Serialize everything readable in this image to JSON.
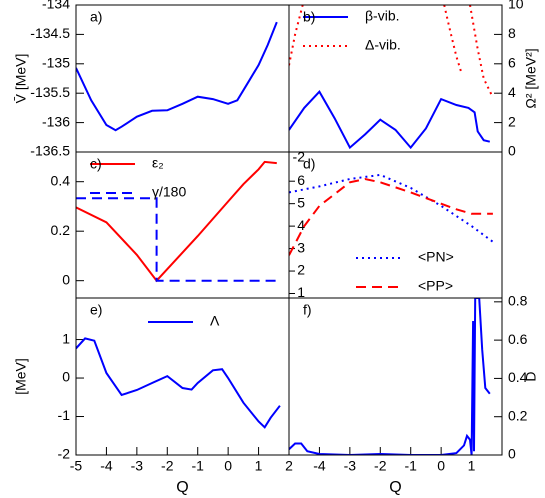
{
  "chart_data": [
    {
      "type": "line",
      "label": "a)",
      "y_label": "V̄ [MeV]",
      "axis_side": "left",
      "xlim": [
        -5,
        2
      ],
      "ylim": [
        -136.5,
        -134
      ],
      "yticks": [
        -136.5,
        -136,
        -135.5,
        -135,
        -134.5,
        -134
      ],
      "series": [
        {
          "color": "#0000ff",
          "style": "solid",
          "x": [
            -5,
            -4.5,
            -4,
            -3.7,
            -3.5,
            -3,
            -2.5,
            -2,
            -1.5,
            -1,
            -0.5,
            0,
            0.3,
            0.7,
            1,
            1.3,
            1.6
          ],
          "values": [
            -135.07,
            -135.62,
            -136.04,
            -136.13,
            -136.07,
            -135.9,
            -135.8,
            -135.79,
            -135.68,
            -135.56,
            -135.6,
            -135.68,
            -135.62,
            -135.28,
            -135.02,
            -134.68,
            -134.29
          ]
        }
      ]
    },
    {
      "type": "line",
      "label": "b)",
      "y_label": "Ω² [MeV²]",
      "axis_side": "right",
      "legend": "upper left",
      "xlim": [
        -5,
        2
      ],
      "ylim": [
        0,
        10
      ],
      "yticks": [
        0,
        2,
        4,
        6,
        8,
        10
      ],
      "series": [
        {
          "name": "β-vib.",
          "color": "#0000ff",
          "style": "solid",
          "x": [
            -5,
            -4.5,
            -4,
            -3.5,
            -3,
            -2.5,
            -2,
            -1.5,
            -1,
            -0.5,
            0,
            0.5,
            0.9,
            1.1,
            1.2,
            1.4,
            1.6
          ],
          "values": [
            1.5,
            3.0,
            4.1,
            2.3,
            0.3,
            1.2,
            2.2,
            1.5,
            0.3,
            1.6,
            3.6,
            3.2,
            3.0,
            2.7,
            1.4,
            0.8,
            0.7
          ]
        },
        {
          "name": "Δ-vib.",
          "color": "#ff0000",
          "style": "dotted",
          "x": [
            -5,
            -4.8,
            -4.55,
            -4,
            0.1,
            0.3,
            0.5,
            0.65,
            0.8,
            0.95,
            1.2,
            1.4,
            1.7
          ],
          "values": [
            5.9,
            8,
            10,
            null,
            10,
            8.2,
            6.5,
            5.5,
            null,
            10,
            7,
            5,
            3.7
          ]
        }
      ]
    },
    {
      "type": "line",
      "label": "c)",
      "axis_side": "left",
      "legend": "upper left",
      "xlim": [
        -5,
        2
      ],
      "ylim": [
        -0.07,
        0.52
      ],
      "yticks": [
        0,
        0.2,
        0.4
      ],
      "series": [
        {
          "name": "ε₂",
          "color": "#ff0000",
          "style": "solid",
          "x": [
            -5,
            -4,
            -3,
            -2.35,
            -1,
            0,
            0.5,
            1,
            1.2,
            1.6
          ],
          "values": [
            0.296,
            0.236,
            0.104,
            0,
            0.18,
            0.32,
            0.39,
            0.45,
            0.48,
            0.475
          ]
        },
        {
          "name": "γ/180",
          "color": "#0000ff",
          "style": "dashed",
          "x": [
            -5,
            -2.35,
            -2.35,
            1.7
          ],
          "values": [
            0.333,
            0.333,
            0,
            0
          ]
        }
      ]
    },
    {
      "type": "line",
      "label": "d)",
      "axis_side": "inside-left",
      "legend": "lower right",
      "corner_text": "-2",
      "xlim": [
        -5,
        2
      ],
      "ylim": [
        0.8,
        7.3
      ],
      "yticks": [
        1,
        2,
        3,
        4,
        5,
        6
      ],
      "series": [
        {
          "name": "<PN>",
          "color": "#0000ff",
          "style": "dotted",
          "x": [
            -5,
            -4,
            -3,
            -2,
            -1,
            0,
            1,
            1.7
          ],
          "values": [
            5.5,
            5.77,
            6.1,
            6.28,
            5.7,
            4.9,
            4.0,
            3.3
          ]
        },
        {
          "name": "<PP>",
          "color": "#ff0000",
          "style": "dashed",
          "x": [
            -5,
            -4.5,
            -4,
            -3,
            -2.5,
            -2,
            -1,
            0,
            0.5,
            1,
            1.7
          ],
          "values": [
            2.7,
            4.0,
            4.9,
            5.95,
            6.1,
            5.95,
            5.5,
            5.0,
            4.75,
            4.55,
            4.55
          ]
        }
      ]
    },
    {
      "type": "line",
      "label": "e)",
      "y_label": "[MeV]",
      "x_label": "Q",
      "axis_side": "left",
      "legend": "upper center",
      "xlim": [
        -5,
        2
      ],
      "ylim": [
        -2,
        2.08
      ],
      "yticks": [
        -2,
        -1,
        0,
        1
      ],
      "xticks": [
        -5,
        -4,
        -3,
        -2,
        -1,
        0,
        1,
        2
      ],
      "series": [
        {
          "name": "Λ",
          "color": "#0000ff",
          "style": "solid",
          "x": [
            -5,
            -4.7,
            -4.4,
            -4,
            -3.5,
            -3,
            -2.5,
            -2,
            -1.5,
            -1.2,
            -1,
            -0.5,
            -0.2,
            0,
            0.5,
            1,
            1.2,
            1.4,
            1.7
          ],
          "values": [
            0.77,
            1.03,
            0.97,
            0.13,
            -0.44,
            -0.31,
            -0.13,
            0.05,
            -0.26,
            -0.3,
            -0.13,
            0.2,
            0.23,
            0,
            -0.64,
            -1.13,
            -1.28,
            -1.03,
            -0.72
          ]
        }
      ]
    },
    {
      "type": "line",
      "label": "f)",
      "y_label": "D",
      "x_label": "Q",
      "axis_side": "right",
      "xlim": [
        -5,
        2
      ],
      "ylim": [
        0,
        0.82
      ],
      "yticks": [
        0,
        0.2,
        0.4,
        0.6,
        0.8
      ],
      "xticks": [
        -4,
        -3,
        -2,
        -1,
        0,
        1
      ],
      "series": [
        {
          "color": "#0000ff",
          "style": "solid",
          "x": [
            -5,
            -4.8,
            -4.6,
            -4.4,
            -4,
            -3,
            -2,
            -1,
            0,
            0.5,
            0.75,
            0.85,
            0.95,
            1.0,
            1.05,
            1.08,
            1.12,
            1.18,
            1.25,
            1.35,
            1.45,
            1.6
          ],
          "values": [
            0.03,
            0.06,
            0.06,
            0.02,
            0.005,
            0,
            0.005,
            0,
            0,
            0.01,
            0.05,
            0.1,
            0.08,
            0,
            0.7,
            0.02,
            0.82,
            0.82,
            0.82,
            0.55,
            0.35,
            0.32
          ]
        }
      ]
    }
  ]
}
